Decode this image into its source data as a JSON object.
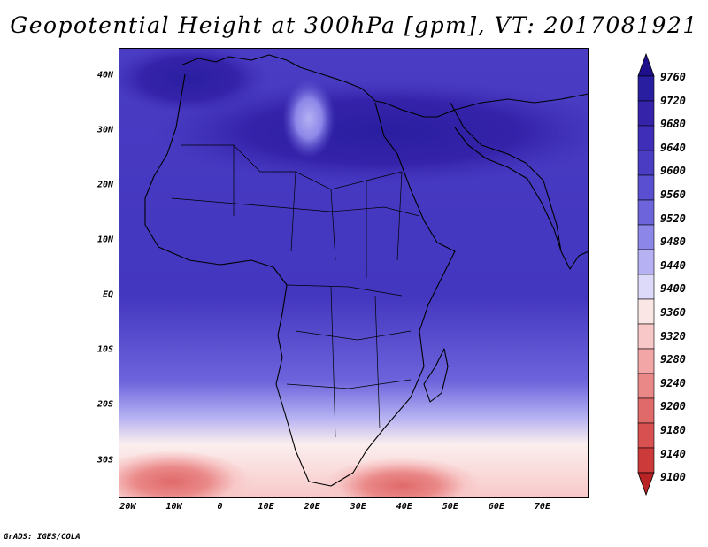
{
  "title": "Geopotential Height at 300hPa [gpm], VT: 2017081921",
  "footer": "GrADS: IGES/COLA",
  "lat_labels": [
    "40N",
    "30N",
    "20N",
    "10N",
    "EQ",
    "10S",
    "20S",
    "30S"
  ],
  "lat_values": [
    40,
    30,
    20,
    10,
    0,
    -10,
    -20,
    -30
  ],
  "lon_labels": [
    "20W",
    "10W",
    "0",
    "10E",
    "20E",
    "30E",
    "40E",
    "50E",
    "60E",
    "70E"
  ],
  "lon_values": [
    -20,
    -10,
    0,
    10,
    20,
    30,
    40,
    50,
    60,
    70
  ],
  "map_extent": {
    "lon_min": -22,
    "lon_max": 80,
    "lat_min": -37,
    "lat_max": 45
  },
  "colorbar": {
    "levels": [
      "9760",
      "9720",
      "9680",
      "9640",
      "9600",
      "9560",
      "9520",
      "9480",
      "9440",
      "9400",
      "9360",
      "9320",
      "9280",
      "9240",
      "9200",
      "9180",
      "9140",
      "9100"
    ],
    "colors": [
      "#1e0f8c",
      "#2a1ea0",
      "#3523aa",
      "#3f2fb8",
      "#4a3dc3",
      "#5a4fd0",
      "#6d64dc",
      "#8c86e8",
      "#b5b1f2",
      "#dcdaf8",
      "#fbe6e6",
      "#f8c8c8",
      "#f2a6a6",
      "#ea8888",
      "#e06a6a",
      "#d85050",
      "#cc3a3a",
      "#b82424"
    ]
  }
}
